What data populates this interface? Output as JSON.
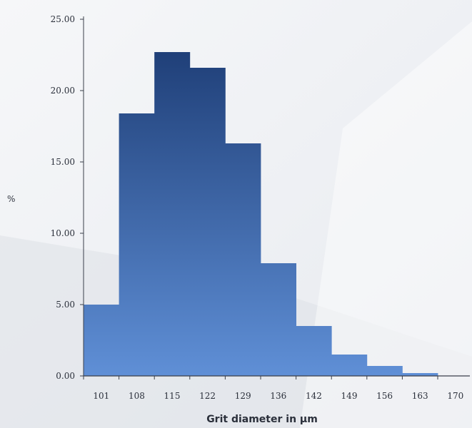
{
  "colors": {
    "bar_top": "#1f3f78",
    "bar_bottom": "#5f8fd6",
    "axis": "#3a3f4a"
  },
  "chart_data": {
    "type": "bar",
    "title": "",
    "xlabel": "Grit diameter in µm",
    "ylabel": "%",
    "categories": [
      "101",
      "108",
      "115",
      "122",
      "129",
      "136",
      "142",
      "149",
      "156",
      "163",
      "170"
    ],
    "values": [
      5.0,
      18.4,
      22.7,
      21.6,
      16.3,
      7.9,
      3.5,
      1.5,
      0.7,
      0.2,
      0.0
    ],
    "y_ticks": [
      "0.00",
      "5.00",
      "10.00",
      "15.00",
      "20.00",
      "25.00"
    ],
    "ylim": [
      0,
      25
    ],
    "grid": false,
    "legend": "none"
  }
}
